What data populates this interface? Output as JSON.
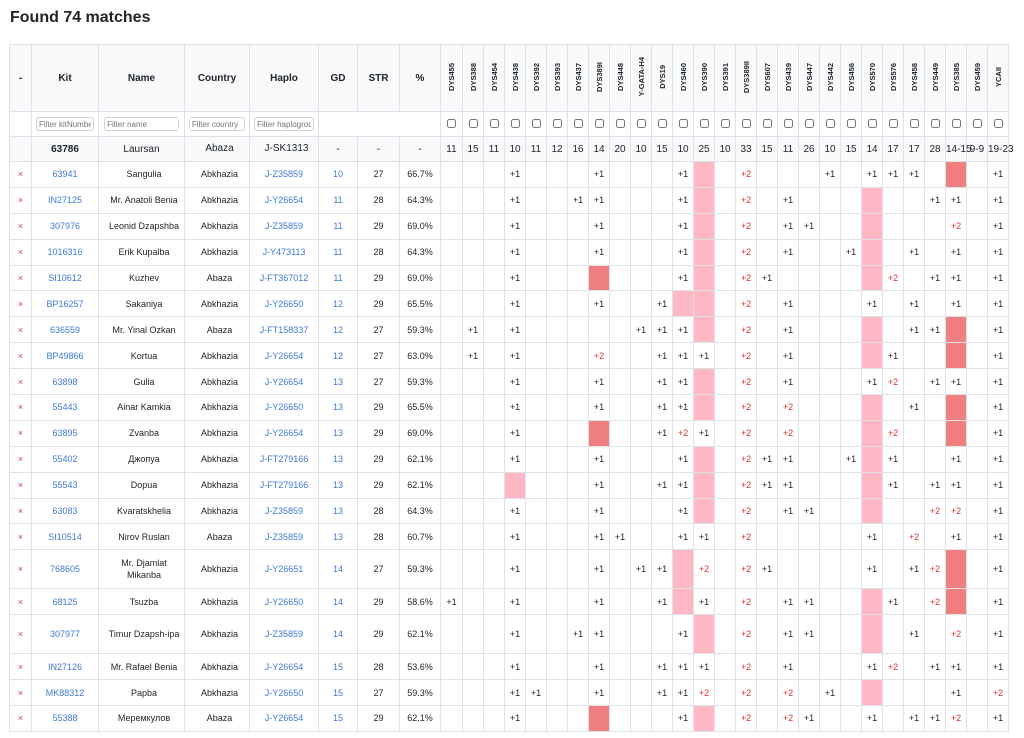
{
  "title": "Found 74 matches",
  "columns": {
    "remove": "-",
    "kit": "Kit",
    "name": "Name",
    "country": "Country",
    "haplo": "Haplo",
    "gd": "GD",
    "str": "STR",
    "pct": "%"
  },
  "markers": [
    "DYS455",
    "DYS388",
    "DYS454",
    "DYS438",
    "DYS392",
    "DYS393",
    "DYS437",
    "DYS389I",
    "DYS448",
    "Y-GATA-H4",
    "DYS19",
    "DYS460",
    "DYS390",
    "DYS391",
    "DYS389II",
    "DYS607",
    "DYS439",
    "DYS447",
    "DYS442",
    "DYS456",
    "DYS570",
    "DYS576",
    "DYS458",
    "DYS449",
    "DYS385",
    "DYS459",
    "YCAII"
  ],
  "filters": {
    "kit_placeholder": "Filter kitNumber",
    "name_placeholder": "Filter name",
    "country_placeholder": "Filter country",
    "haplo_placeholder": "Filter haplogroup"
  },
  "reference": {
    "kit": "63786",
    "name": "Laursan",
    "country": "Abaza",
    "haplo": "J-SK1313",
    "gd": "-",
    "str": "-",
    "pct": "-",
    "values": [
      "11",
      "15",
      "11",
      "10",
      "11",
      "12",
      "16",
      "14",
      "20",
      "10",
      "15",
      "10",
      "25",
      "10",
      "33",
      "15",
      "11",
      "26",
      "10",
      "15",
      "14",
      "17",
      "17",
      "28",
      "14-15",
      "9-9",
      "19-23"
    ]
  },
  "remove_icon": "×",
  "highlight_colors": {
    "light": "#ffb8c4",
    "dark": "#f08080",
    "plus2": "#e03131",
    "link": "#3d7ad6"
  },
  "rows": [
    {
      "kit": "63941",
      "name": "Sangulia",
      "country": "Abkhazia",
      "haplo": "J-Z35859",
      "gd": "10",
      "str": "27",
      "pct": "66.7%",
      "cells": {
        "3": "+1",
        "7": "+1",
        "11": "+1",
        "12": "L",
        "14": "+2",
        "18": "+1",
        "20": "+1",
        "21": "+1",
        "22": "+1",
        "24": "D",
        "26": "+1"
      }
    },
    {
      "kit": "IN27125",
      "name": "Mr. Anatoli Benia",
      "country": "Abkhazia",
      "haplo": "J-Y26654",
      "gd": "11",
      "str": "28",
      "pct": "64.3%",
      "cells": {
        "3": "+1",
        "6": "+1",
        "7": "+1",
        "11": "+1",
        "12": "L",
        "14": "+2",
        "16": "+1",
        "20": "L",
        "23": "+1",
        "24": "+1",
        "26": "+1"
      }
    },
    {
      "kit": "307976",
      "name": "Leonid Dzapshba",
      "country": "Abkhazia",
      "haplo": "J-Z35859",
      "gd": "11",
      "str": "29",
      "pct": "69.0%",
      "cells": {
        "3": "+1",
        "7": "+1",
        "11": "+1",
        "12": "L",
        "14": "+2",
        "16": "+1",
        "17": "+1",
        "20": "L",
        "24": "+2",
        "26": "+1"
      }
    },
    {
      "kit": "1016316",
      "name": "Erik Kupalba",
      "country": "Abkhazia",
      "haplo": "J-Y473113",
      "gd": "11",
      "str": "28",
      "pct": "64.3%",
      "cells": {
        "3": "+1",
        "7": "+1",
        "11": "+1",
        "12": "L",
        "14": "+2",
        "16": "+1",
        "19": "+1",
        "20": "L",
        "22": "+1",
        "24": "+1",
        "26": "+1"
      }
    },
    {
      "kit": "SI10612",
      "name": "Kuzhev",
      "country": "Abaza",
      "haplo": "J-FT367012",
      "gd": "11",
      "str": "29",
      "pct": "69.0%",
      "cells": {
        "3": "+1",
        "7": "D",
        "11": "+1",
        "12": "L",
        "14": "+2",
        "15": "+1",
        "20": "L",
        "21": "+2",
        "23": "+1",
        "24": "+1",
        "26": "+1"
      }
    },
    {
      "kit": "BP16257",
      "name": "Sakaniya",
      "country": "Abkhazia",
      "haplo": "J-Y26650",
      "gd": "12",
      "str": "29",
      "pct": "65.5%",
      "cells": {
        "3": "+1",
        "7": "+1",
        "10": "+1",
        "11": "L",
        "12": "L",
        "14": "+2",
        "16": "+1",
        "20": "+1",
        "22": "+1",
        "24": "+1",
        "26": "+1"
      }
    },
    {
      "kit": "636559",
      "name": "Mr. Yinal Ozkan",
      "country": "Abaza",
      "haplo": "J-FT158337",
      "gd": "12",
      "str": "27",
      "pct": "59.3%",
      "cells": {
        "1": "+1",
        "3": "+1",
        "9": "+1",
        "10": "+1",
        "11": "+1",
        "12": "L",
        "14": "+2",
        "16": "+1",
        "20": "L",
        "22": "+1",
        "23": "+1",
        "24": "D",
        "26": "+1"
      }
    },
    {
      "kit": "BP49866",
      "name": "Kortua",
      "country": "Abkhazia",
      "haplo": "J-Y26654",
      "gd": "12",
      "str": "27",
      "pct": "63.0%",
      "cells": {
        "1": "+1",
        "3": "+1",
        "7": "+2",
        "10": "+1",
        "11": "+1",
        "12": "+1",
        "14": "+2",
        "16": "+1",
        "20": "L",
        "21": "+1",
        "24": "D",
        "26": "+1"
      }
    },
    {
      "kit": "63898",
      "name": "Gulia",
      "country": "Abkhazia",
      "haplo": "J-Y26654",
      "gd": "13",
      "str": "27",
      "pct": "59.3%",
      "cells": {
        "3": "+1",
        "7": "+1",
        "10": "+1",
        "11": "+1",
        "12": "L",
        "14": "+2",
        "16": "+1",
        "20": "+1",
        "21": "+2",
        "23": "+1",
        "24": "+1",
        "26": "+1"
      }
    },
    {
      "kit": "55443",
      "name": "Ainar Kamkia",
      "country": "Abkhazia",
      "haplo": "J-Y26650",
      "gd": "13",
      "str": "29",
      "pct": "65.5%",
      "cells": {
        "3": "+1",
        "7": "+1",
        "10": "+1",
        "11": "+1",
        "12": "L",
        "14": "+2",
        "16": "+2",
        "20": "L",
        "22": "+1",
        "24": "D",
        "26": "+1"
      }
    },
    {
      "kit": "63895",
      "name": "Zvanba",
      "country": "Abkhazia",
      "haplo": "J-Y26654",
      "gd": "13",
      "str": "29",
      "pct": "69.0%",
      "cells": {
        "3": "+1",
        "7": "D",
        "10": "+1",
        "11": "+2",
        "12": "+1",
        "14": "+2",
        "16": "+2",
        "20": "L",
        "21": "+2",
        "24": "D",
        "26": "+1"
      }
    },
    {
      "kit": "55402",
      "name": "Джопуа",
      "country": "Abkhazia",
      "haplo": "J-FT279166",
      "gd": "13",
      "str": "29",
      "pct": "62.1%",
      "cells": {
        "3": "+1",
        "7": "+1",
        "11": "+1",
        "12": "L",
        "14": "+2",
        "15": "+1",
        "16": "+1",
        "19": "+1",
        "20": "L",
        "21": "+1",
        "24": "+1",
        "26": "+1"
      }
    },
    {
      "kit": "55543",
      "name": "Dopua",
      "country": "Abkhazia",
      "haplo": "J-FT279166",
      "gd": "13",
      "str": "29",
      "pct": "62.1%",
      "cells": {
        "3": "L",
        "7": "+1",
        "10": "+1",
        "11": "+1",
        "12": "L",
        "14": "+2",
        "15": "+1",
        "16": "+1",
        "20": "L",
        "21": "+1",
        "23": "+1",
        "24": "+1",
        "26": "+1"
      }
    },
    {
      "kit": "63083",
      "name": "Kvaratskhelia",
      "country": "Abkhazia",
      "haplo": "J-Z35859",
      "gd": "13",
      "str": "28",
      "pct": "64.3%",
      "cells": {
        "3": "+1",
        "7": "+1",
        "11": "+1",
        "12": "L",
        "14": "+2",
        "16": "+1",
        "17": "+1",
        "20": "L",
        "23": "+2",
        "24": "+2",
        "26": "+1"
      }
    },
    {
      "kit": "SI10514",
      "name": "Nirov Ruslan",
      "country": "Abaza",
      "haplo": "J-Z35859",
      "gd": "13",
      "str": "28",
      "pct": "60.7%",
      "cells": {
        "3": "+1",
        "7": "+1",
        "8": "+1",
        "11": "+1",
        "12": "+1",
        "14": "+2",
        "20": "+1",
        "22": "+2",
        "24": "+1",
        "26": "+1"
      }
    },
    {
      "kit": "768605",
      "name": "Mr. Djamlat Mikanba",
      "country": "Abkhazia",
      "haplo": "J-Y26651",
      "gd": "14",
      "str": "27",
      "pct": "59.3%",
      "tall": true,
      "cells": {
        "3": "+1",
        "7": "+1",
        "9": "+1",
        "10": "+1",
        "11": "L",
        "12": "+2",
        "14": "+2",
        "15": "+1",
        "20": "+1",
        "22": "+1",
        "23": "+2",
        "24": "D",
        "26": "+1"
      }
    },
    {
      "kit": "68125",
      "name": "Tsuzba",
      "country": "Abkhazia",
      "haplo": "J-Y26650",
      "gd": "14",
      "str": "29",
      "pct": "58.6%",
      "cells": {
        "0": "+1",
        "3": "+1",
        "7": "+1",
        "10": "+1",
        "11": "L",
        "12": "+1",
        "14": "+2",
        "16": "+1",
        "17": "+1",
        "20": "L",
        "21": "+1",
        "23": "+2",
        "24": "D",
        "26": "+1"
      }
    },
    {
      "kit": "307977",
      "name": "Timur Dzapsh-ipa",
      "country": "Abkhazia",
      "haplo": "J-Z35859",
      "gd": "14",
      "str": "29",
      "pct": "62.1%",
      "tall": true,
      "cells": {
        "3": "+1",
        "6": "+1",
        "7": "+1",
        "11": "+1",
        "12": "L",
        "14": "+2",
        "16": "+1",
        "17": "+1",
        "20": "L",
        "22": "+1",
        "24": "+2",
        "26": "+1"
      }
    },
    {
      "kit": "IN27126",
      "name": "Mr. Rafael Benia",
      "country": "Abkhazia",
      "haplo": "J-Y26654",
      "gd": "15",
      "str": "28",
      "pct": "53.6%",
      "cells": {
        "3": "+1",
        "7": "+1",
        "10": "+1",
        "11": "+1",
        "12": "+1",
        "14": "+2",
        "16": "+1",
        "20": "+1",
        "21": "+2",
        "23": "+1",
        "24": "+1",
        "26": "+1"
      }
    },
    {
      "kit": "MK88312",
      "name": "Papba",
      "country": "Abkhazia",
      "haplo": "J-Y26650",
      "gd": "15",
      "str": "27",
      "pct": "59.3%",
      "cells": {
        "3": "+1",
        "4": "+1",
        "7": "+1",
        "10": "+1",
        "11": "+1",
        "12": "+2",
        "14": "+2",
        "16": "+2",
        "18": "+1",
        "20": "L",
        "24": "+1",
        "26": "+2"
      }
    },
    {
      "kit": "55388",
      "name": "Меремкулов",
      "country": "Abaza",
      "haplo": "J-Y26654",
      "gd": "15",
      "str": "29",
      "pct": "62.1%",
      "cells": {
        "3": "+1",
        "7": "D",
        "11": "+1",
        "12": "L",
        "14": "+2",
        "16": "+2",
        "17": "+1",
        "20": "+1",
        "22": "+1",
        "23": "+1",
        "24": "+2",
        "26": "+1"
      }
    }
  ]
}
